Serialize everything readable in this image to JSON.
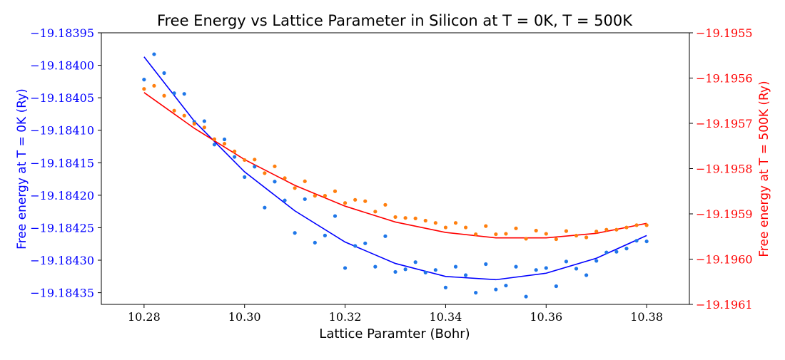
{
  "chart_data": {
    "type": "scatter",
    "title": "Free Energy vs Lattice Parameter in Silicon at T = 0K, T = 500K",
    "xlabel": "Lattice Paramter (Bohr)",
    "ylabel_left": "Free energy at T = 0K (Ry)",
    "ylabel_right": "Free energy at T = 500K (Ry)",
    "xlim": [
      10.2715,
      10.3885
    ],
    "x_ticks": [
      10.28,
      10.3,
      10.32,
      10.34,
      10.36,
      10.38
    ],
    "x_tick_labels": [
      "10.28",
      "10.30",
      "10.32",
      "10.34",
      "10.36",
      "10.38"
    ],
    "ylim_left": [
      -19.184368,
      -19.18395
    ],
    "ylim_right": [
      -19.1961,
      -19.1955
    ],
    "y_left_ticks": [
      -19.18395,
      -19.184,
      -19.18405,
      -19.1841,
      -19.18415,
      -19.1842,
      -19.18425,
      -19.1843,
      -19.18435
    ],
    "y_left_tick_labels": [
      "−19.18395",
      "−19.18400",
      "−19.18405",
      "−19.18410",
      "−19.18415",
      "−19.18420",
      "−19.18425",
      "−19.18430",
      "−19.18435"
    ],
    "y_right_ticks": [
      -19.1955,
      -19.1956,
      -19.1957,
      -19.1958,
      -19.1959,
      -19.196,
      -19.1961
    ],
    "y_right_tick_labels": [
      "−19.1955",
      "−19.1956",
      "−19.1957",
      "−19.1958",
      "−19.1959",
      "−19.1960",
      "−19.1961"
    ],
    "grid": false,
    "series": [
      {
        "axis": "left",
        "kind": "points",
        "color": "#1f77e8",
        "x": [
          10.28,
          10.282,
          10.284,
          10.286,
          10.288,
          10.29,
          10.292,
          10.294,
          10.296,
          10.298,
          10.3,
          10.302,
          10.304,
          10.306,
          10.308,
          10.31,
          10.312,
          10.314,
          10.316,
          10.318,
          10.32,
          10.322,
          10.324,
          10.326,
          10.328,
          10.33,
          10.332,
          10.334,
          10.336,
          10.338,
          10.34,
          10.342,
          10.344,
          10.346,
          10.348,
          10.35,
          10.352,
          10.354,
          10.356,
          10.358,
          10.36,
          10.362,
          10.364,
          10.366,
          10.368,
          10.37,
          10.372,
          10.374,
          10.376,
          10.378,
          10.38
        ],
        "y": [
          -19.184022,
          -19.183983,
          -19.184012,
          -19.184043,
          -19.184044,
          -19.184087,
          -19.184086,
          -19.184122,
          -19.184114,
          -19.184141,
          -19.184172,
          -19.184156,
          -19.184219,
          -19.184179,
          -19.184208,
          -19.184258,
          -19.184206,
          -19.184273,
          -19.184262,
          -19.184232,
          -19.184312,
          -19.184278,
          -19.184274,
          -19.18431,
          -19.184263,
          -19.184318,
          -19.184314,
          -19.184303,
          -19.184319,
          -19.184315,
          -19.184342,
          -19.18431,
          -19.184323,
          -19.18435,
          -19.184306,
          -19.184345,
          -19.184339,
          -19.18431,
          -19.184356,
          -19.184315,
          -19.184312,
          -19.18434,
          -19.184302,
          -19.184313,
          -19.184323,
          -19.184301,
          -19.184288,
          -19.184287,
          -19.184282,
          -19.18427,
          -19.184271
        ]
      },
      {
        "axis": "right",
        "kind": "points",
        "color": "#ff7f0e",
        "x": [
          10.28,
          10.282,
          10.284,
          10.286,
          10.288,
          10.29,
          10.292,
          10.294,
          10.296,
          10.298,
          10.3,
          10.302,
          10.304,
          10.306,
          10.308,
          10.31,
          10.312,
          10.314,
          10.316,
          10.318,
          10.32,
          10.322,
          10.324,
          10.326,
          10.328,
          10.33,
          10.332,
          10.334,
          10.336,
          10.338,
          10.34,
          10.342,
          10.344,
          10.346,
          10.348,
          10.35,
          10.352,
          10.354,
          10.356,
          10.358,
          10.36,
          10.362,
          10.364,
          10.366,
          10.368,
          10.37,
          10.372,
          10.374,
          10.376,
          10.378,
          10.38
        ],
        "y": [
          -19.195624,
          -19.195617,
          -19.195639,
          -19.195672,
          -19.195683,
          -19.195701,
          -19.195709,
          -19.195735,
          -19.195745,
          -19.195762,
          -19.195781,
          -19.19578,
          -19.19581,
          -19.195795,
          -19.195821,
          -19.195843,
          -19.195828,
          -19.19586,
          -19.19586,
          -19.19585,
          -19.195876,
          -19.195869,
          -19.195872,
          -19.195895,
          -19.19588,
          -19.195907,
          -19.195909,
          -19.19591,
          -19.195915,
          -19.19592,
          -19.19593,
          -19.19592,
          -19.19593,
          -19.195945,
          -19.195927,
          -19.195945,
          -19.195944,
          -19.195932,
          -19.195955,
          -19.195937,
          -19.195944,
          -19.195956,
          -19.195938,
          -19.195948,
          -19.195952,
          -19.195939,
          -19.195935,
          -19.195935,
          -19.19593,
          -19.195925,
          -19.195925
        ]
      },
      {
        "axis": "left",
        "kind": "fit-line",
        "color": "#0000ff",
        "x": [
          10.28,
          10.29,
          10.3,
          10.31,
          10.32,
          10.33,
          10.34,
          10.35,
          10.36,
          10.37,
          10.38
        ],
        "y": [
          -19.183987,
          -19.184086,
          -19.184164,
          -19.184224,
          -19.184272,
          -19.184305,
          -19.184325,
          -19.18433,
          -19.18432,
          -19.184297,
          -19.184262
        ]
      },
      {
        "axis": "right",
        "kind": "fit-line",
        "color": "#ff0000",
        "x": [
          10.28,
          10.29,
          10.3,
          10.31,
          10.32,
          10.33,
          10.34,
          10.35,
          10.36,
          10.37,
          10.38
        ],
        "y": [
          -19.195632,
          -19.195711,
          -19.19578,
          -19.195837,
          -19.195883,
          -19.195918,
          -19.195941,
          -19.195953,
          -19.195953,
          -19.195943,
          -19.195921
        ]
      }
    ],
    "left_axis_color": "#0000ff",
    "right_axis_color": "#ff0000"
  }
}
